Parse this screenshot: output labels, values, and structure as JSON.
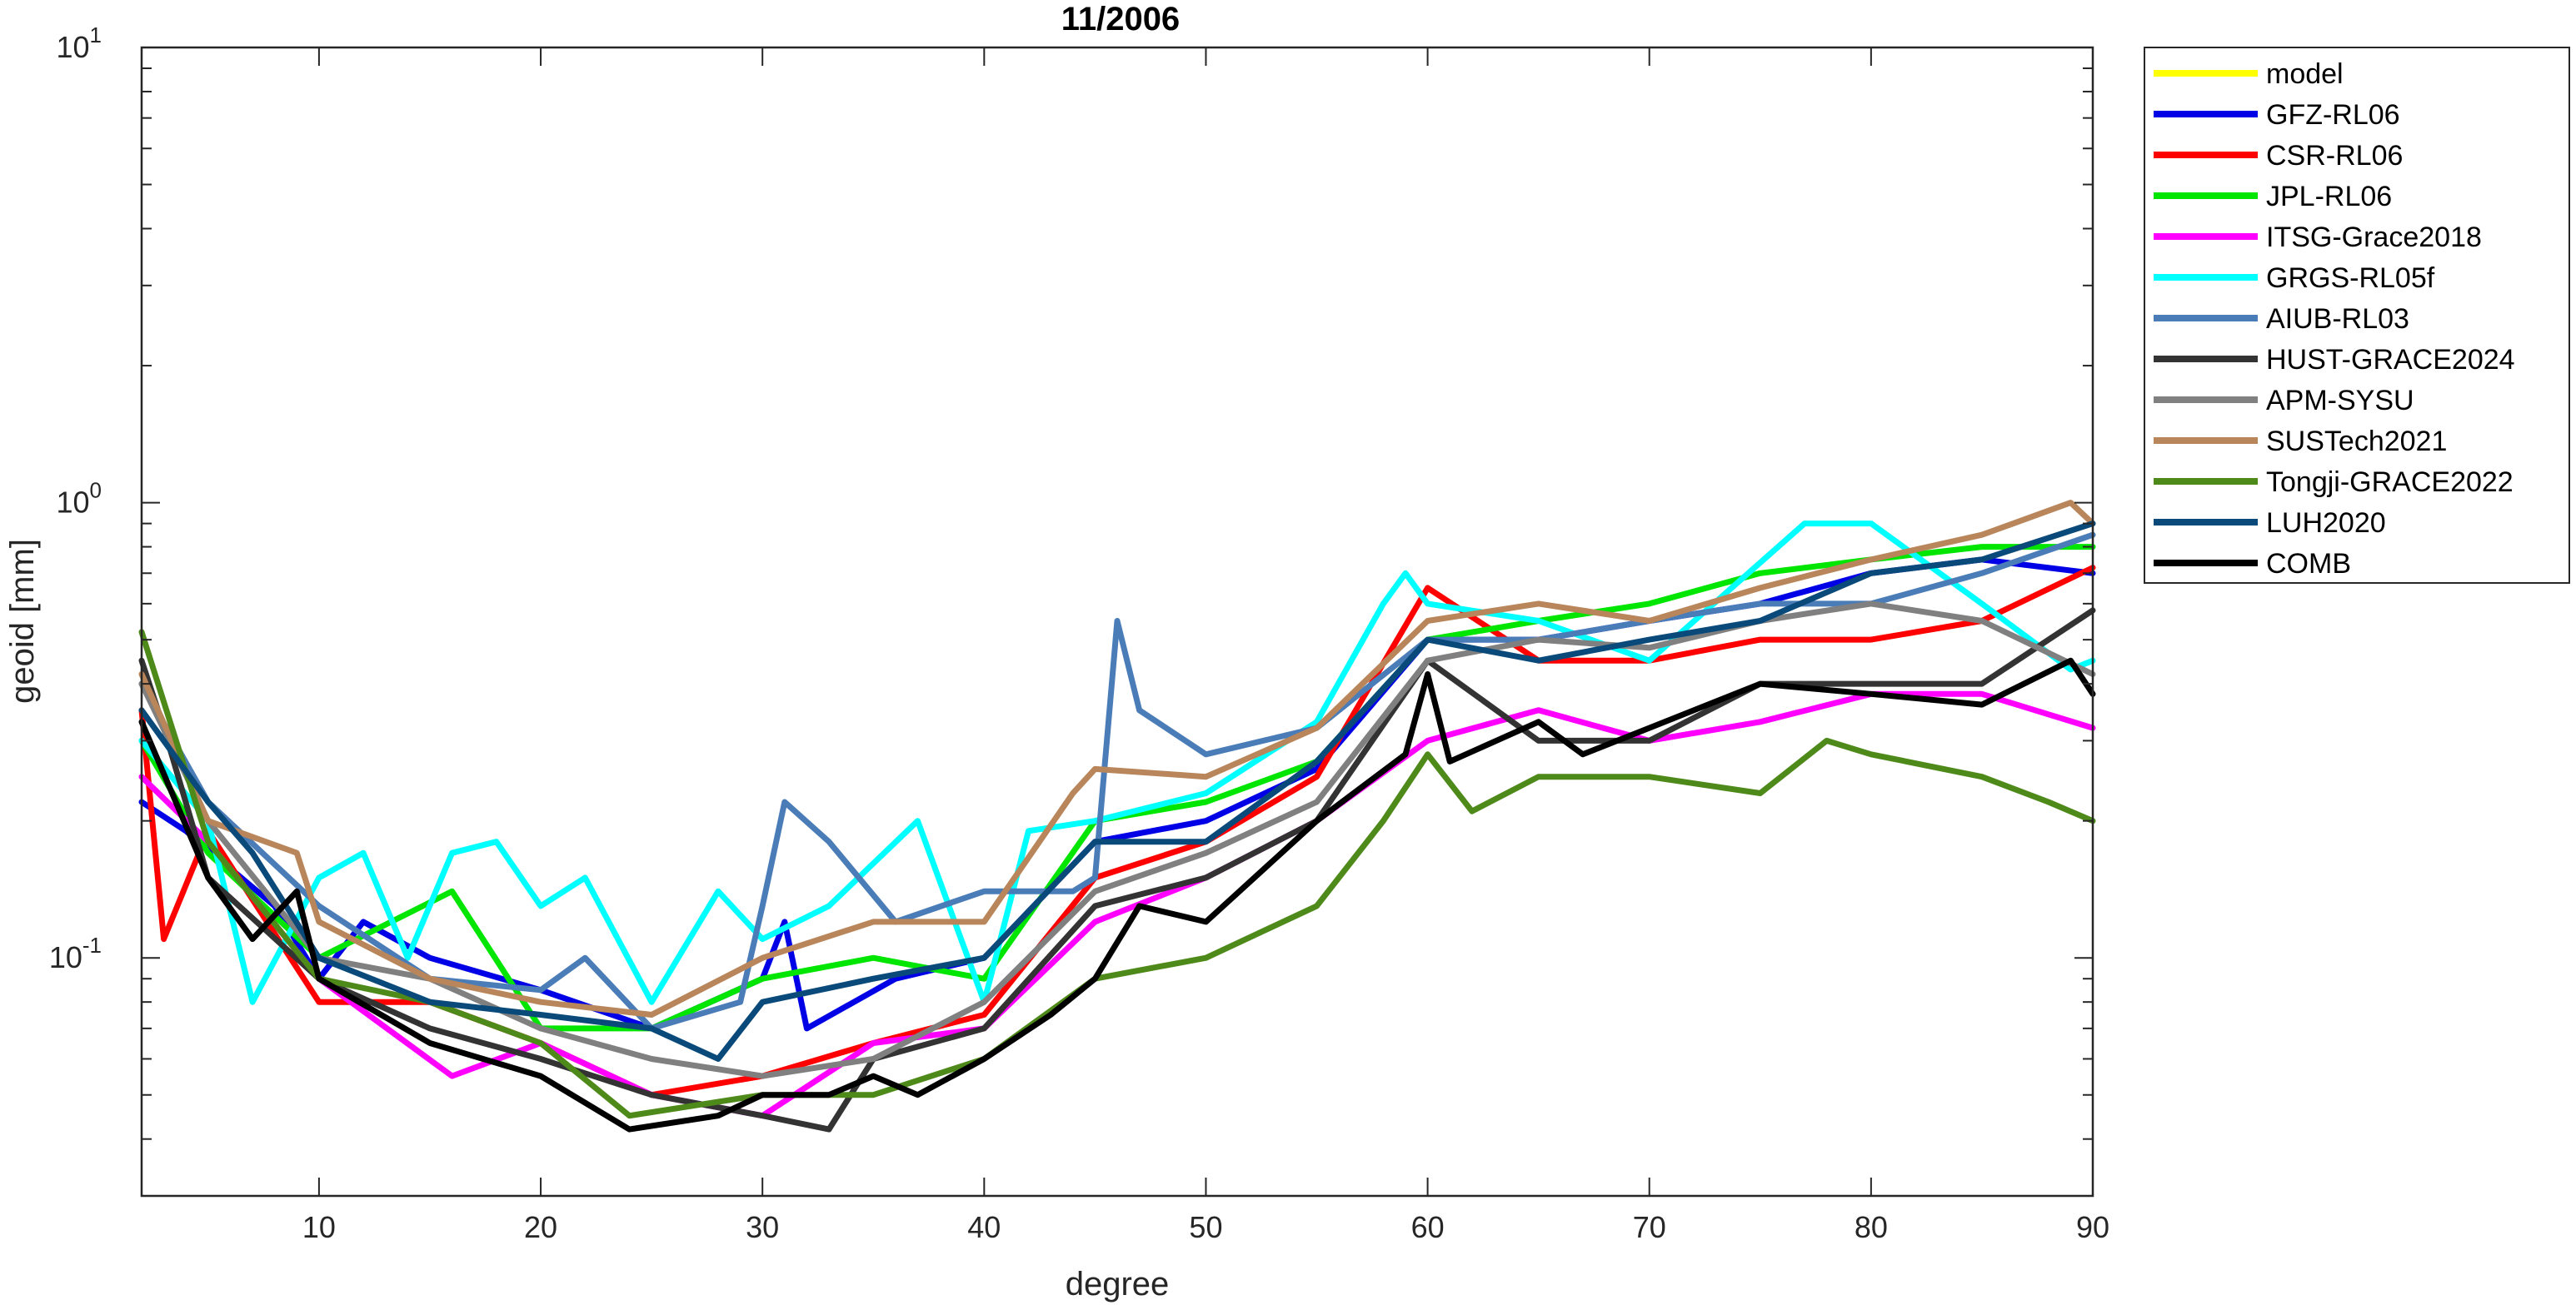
{
  "chart_data": {
    "type": "line",
    "title": "11/2006",
    "xlabel": "degree",
    "ylabel": "geoid [mm]",
    "xlim": [
      2,
      90
    ],
    "ylim": [
      0.03,
      10
    ],
    "yscale": "log",
    "xticks": [
      10,
      20,
      30,
      40,
      50,
      60,
      70,
      80,
      90
    ],
    "yticks": [
      {
        "value": 0.1,
        "base": "10",
        "exp": "-1"
      },
      {
        "value": 1,
        "base": "10",
        "exp": "0"
      },
      {
        "value": 10,
        "base": "10",
        "exp": "1"
      }
    ],
    "grid": false,
    "legend_position": "outside-top-right",
    "series": [
      {
        "name": "model",
        "color": "#FFFF00",
        "x": [],
        "y": []
      },
      {
        "name": "GFZ-RL06",
        "color": "#0000E6",
        "x": [
          2,
          4,
          8,
          10,
          12,
          15,
          20,
          25,
          30,
          31,
          32,
          36,
          40,
          45,
          50,
          55,
          60,
          65,
          70,
          75,
          80,
          85,
          90
        ],
        "y": [
          0.22,
          0.19,
          0.13,
          0.09,
          0.12,
          0.1,
          0.085,
          0.07,
          0.09,
          0.12,
          0.07,
          0.09,
          0.1,
          0.18,
          0.2,
          0.26,
          0.5,
          0.5,
          0.55,
          0.6,
          0.7,
          0.75,
          0.7
        ]
      },
      {
        "name": "CSR-RL06",
        "color": "#FF0000",
        "x": [
          2,
          3,
          5,
          10,
          15,
          20,
          25,
          30,
          35,
          40,
          45,
          50,
          55,
          60,
          65,
          70,
          75,
          80,
          85,
          90
        ],
        "y": [
          0.35,
          0.11,
          0.19,
          0.08,
          0.08,
          0.065,
          0.05,
          0.055,
          0.065,
          0.075,
          0.15,
          0.18,
          0.25,
          0.65,
          0.45,
          0.45,
          0.5,
          0.5,
          0.55,
          0.72
        ]
      },
      {
        "name": "JPL-RL06",
        "color": "#00E600",
        "x": [
          2,
          5,
          10,
          16,
          20,
          25,
          30,
          35,
          40,
          45,
          50,
          55,
          60,
          65,
          70,
          75,
          80,
          85,
          90
        ],
        "y": [
          0.3,
          0.17,
          0.1,
          0.14,
          0.07,
          0.07,
          0.09,
          0.1,
          0.09,
          0.2,
          0.22,
          0.27,
          0.5,
          0.55,
          0.6,
          0.7,
          0.75,
          0.8,
          0.8
        ]
      },
      {
        "name": "ITSG-Grace2018",
        "color": "#FF00FF",
        "x": [
          2,
          5,
          10,
          16,
          20,
          25,
          30,
          35,
          40,
          45,
          50,
          55,
          60,
          65,
          70,
          75,
          80,
          85,
          90
        ],
        "y": [
          0.25,
          0.18,
          0.09,
          0.055,
          0.065,
          0.05,
          0.045,
          0.065,
          0.07,
          0.12,
          0.15,
          0.2,
          0.3,
          0.35,
          0.3,
          0.33,
          0.38,
          0.38,
          0.32
        ]
      },
      {
        "name": "GRGS-RL05f",
        "color": "#00FFFF",
        "x": [
          2,
          5,
          7,
          10,
          12,
          14,
          16,
          18,
          20,
          22,
          25,
          28,
          30,
          33,
          37,
          40,
          42,
          45,
          50,
          55,
          58,
          59,
          60,
          65,
          70,
          77,
          80,
          85,
          89,
          90
        ],
        "y": [
          0.3,
          0.2,
          0.08,
          0.15,
          0.17,
          0.1,
          0.17,
          0.18,
          0.13,
          0.15,
          0.08,
          0.14,
          0.11,
          0.13,
          0.2,
          0.08,
          0.19,
          0.2,
          0.23,
          0.33,
          0.6,
          0.7,
          0.6,
          0.55,
          0.45,
          0.9,
          0.9,
          0.6,
          0.43,
          0.45
        ]
      },
      {
        "name": "AIUB-RL03",
        "color": "#4A7DB8",
        "x": [
          2,
          5,
          10,
          15,
          20,
          22,
          25,
          29,
          30,
          31,
          33,
          36,
          40,
          44,
          45,
          46,
          47,
          50,
          55,
          60,
          65,
          70,
          75,
          80,
          85,
          90
        ],
        "y": [
          0.4,
          0.22,
          0.13,
          0.09,
          0.085,
          0.1,
          0.07,
          0.08,
          0.13,
          0.22,
          0.18,
          0.12,
          0.14,
          0.14,
          0.15,
          0.55,
          0.35,
          0.28,
          0.32,
          0.5,
          0.5,
          0.55,
          0.6,
          0.6,
          0.7,
          0.85
        ]
      },
      {
        "name": "HUST-GRACE2024",
        "color": "#333333",
        "x": [
          2,
          3,
          5,
          10,
          15,
          20,
          25,
          30,
          33,
          35,
          40,
          45,
          50,
          55,
          60,
          65,
          70,
          75,
          80,
          85,
          90
        ],
        "y": [
          0.45,
          0.32,
          0.15,
          0.09,
          0.07,
          0.06,
          0.05,
          0.045,
          0.042,
          0.06,
          0.07,
          0.13,
          0.15,
          0.2,
          0.45,
          0.3,
          0.3,
          0.4,
          0.4,
          0.4,
          0.58
        ]
      },
      {
        "name": "APM-SYSU",
        "color": "#808080",
        "x": [
          2,
          5,
          10,
          15,
          20,
          25,
          30,
          35,
          40,
          45,
          50,
          55,
          60,
          65,
          70,
          75,
          80,
          85,
          90
        ],
        "y": [
          0.4,
          0.2,
          0.1,
          0.09,
          0.07,
          0.06,
          0.055,
          0.06,
          0.08,
          0.14,
          0.17,
          0.22,
          0.45,
          0.5,
          0.48,
          0.55,
          0.6,
          0.55,
          0.42
        ]
      },
      {
        "name": "SUSTech2021",
        "color": "#B8865A",
        "x": [
          2,
          5,
          9,
          10,
          15,
          20,
          25,
          30,
          35,
          40,
          44,
          45,
          50,
          55,
          60,
          65,
          70,
          75,
          80,
          85,
          89,
          90
        ],
        "y": [
          0.42,
          0.2,
          0.17,
          0.12,
          0.09,
          0.08,
          0.075,
          0.1,
          0.12,
          0.12,
          0.23,
          0.26,
          0.25,
          0.32,
          0.55,
          0.6,
          0.55,
          0.65,
          0.75,
          0.85,
          1.0,
          0.9
        ]
      },
      {
        "name": "Tongji-GRACE2022",
        "color": "#4E8A1A",
        "x": [
          2,
          5,
          10,
          15,
          20,
          24,
          30,
          35,
          40,
          45,
          50,
          55,
          58,
          60,
          62,
          65,
          70,
          75,
          78,
          80,
          85,
          88,
          90
        ],
        "y": [
          0.52,
          0.18,
          0.09,
          0.08,
          0.065,
          0.045,
          0.05,
          0.05,
          0.06,
          0.09,
          0.1,
          0.13,
          0.2,
          0.28,
          0.21,
          0.25,
          0.25,
          0.23,
          0.3,
          0.28,
          0.25,
          0.22,
          0.2
        ]
      },
      {
        "name": "LUH2020",
        "color": "#0A4A7A",
        "x": [
          2,
          5,
          7,
          10,
          15,
          20,
          25,
          28,
          30,
          35,
          40,
          45,
          50,
          55,
          60,
          65,
          70,
          75,
          80,
          85,
          90
        ],
        "y": [
          0.35,
          0.22,
          0.17,
          0.1,
          0.08,
          0.075,
          0.07,
          0.06,
          0.08,
          0.09,
          0.1,
          0.18,
          0.18,
          0.27,
          0.5,
          0.45,
          0.5,
          0.55,
          0.7,
          0.75,
          0.9
        ]
      },
      {
        "name": "COMB",
        "color": "#000000",
        "x": [
          2,
          5,
          7,
          9,
          10,
          15,
          20,
          24,
          28,
          30,
          33,
          35,
          37,
          40,
          43,
          45,
          47,
          50,
          55,
          59,
          60,
          61,
          65,
          67,
          70,
          75,
          80,
          85,
          89,
          90
        ],
        "y": [
          0.33,
          0.15,
          0.11,
          0.14,
          0.09,
          0.065,
          0.055,
          0.042,
          0.045,
          0.05,
          0.05,
          0.055,
          0.05,
          0.06,
          0.075,
          0.09,
          0.13,
          0.12,
          0.2,
          0.28,
          0.42,
          0.27,
          0.33,
          0.28,
          0.32,
          0.4,
          0.38,
          0.36,
          0.45,
          0.38
        ]
      }
    ]
  }
}
